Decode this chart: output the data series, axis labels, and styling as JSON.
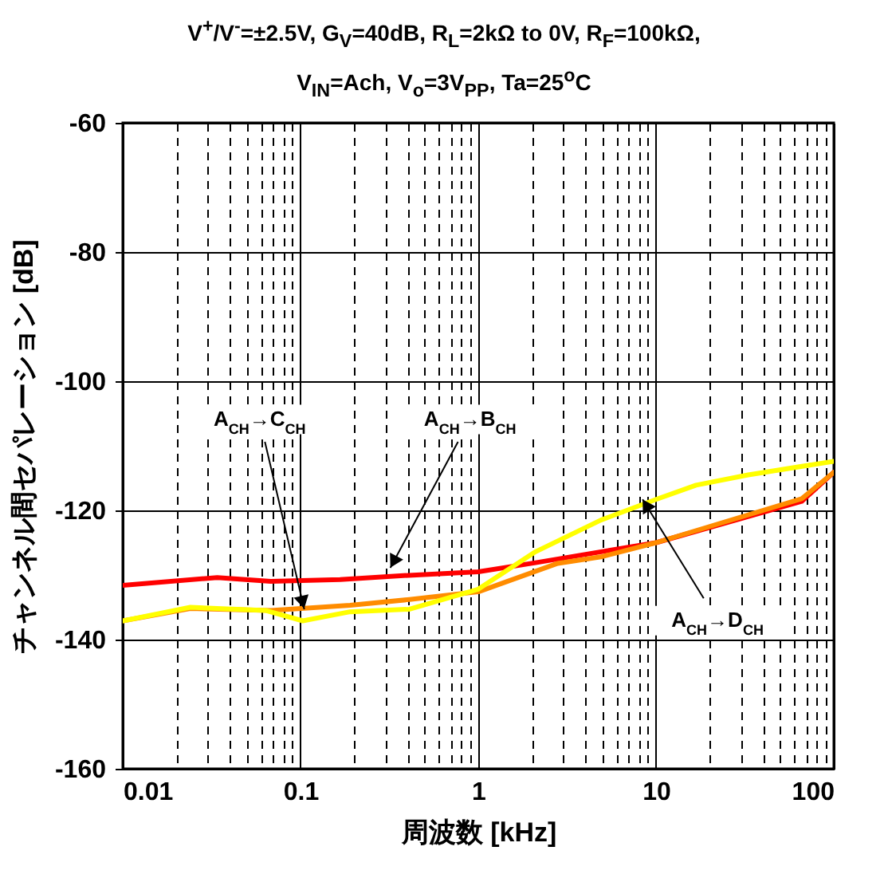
{
  "chart_data": {
    "type": "line",
    "title": "V$^{+}$/V$^{-}$=±2.5V, G$_{V}$=40dB, R$_{L}$=2kΩ to 0V, R$_{F}$=100kΩ, V$_{IN}$=Ach, V$_{o}$=3V$_{PP}$, Ta=25$^{o}$C",
    "xlabel": "周波数 [kHz]",
    "ylabel": "チャンネル間セパレーション [dB]",
    "log": "x",
    "grid": true,
    "legend": false,
    "line_style": "solid",
    "marker": "none",
    "xlim": [
      0.01,
      100
    ],
    "ylim": [
      -160,
      -60
    ],
    "xticks": [
      0.01,
      {
        "value": 0.02,
        "label": null
      },
      {
        "value": 0.03,
        "label": null
      },
      {
        "value": 0.04,
        "label": null
      },
      {
        "value": 0.05,
        "label": null
      },
      {
        "value": 0.06,
        "label": null
      },
      {
        "value": 0.07,
        "label": null
      },
      {
        "value": 0.08,
        "label": null
      },
      {
        "value": 0.09,
        "label": null
      },
      0.1,
      {
        "value": 0.2,
        "label": null
      },
      {
        "value": 0.3,
        "label": null
      },
      {
        "value": 0.4,
        "label": null
      },
      {
        "value": 0.5,
        "label": null
      },
      {
        "value": 0.6,
        "label": null
      },
      {
        "value": 0.7,
        "label": null
      },
      {
        "value": 0.8,
        "label": null
      },
      {
        "value": 0.9,
        "label": null
      },
      1,
      {
        "value": 2,
        "label": null
      },
      {
        "value": 3,
        "label": null
      },
      {
        "value": 4,
        "label": null
      },
      {
        "value": 5,
        "label": null
      },
      {
        "value": 6,
        "label": null
      },
      {
        "value": 7,
        "label": null
      },
      {
        "value": 8,
        "label": null
      },
      {
        "value": 9,
        "label": null
      },
      10,
      {
        "value": 20,
        "label": null
      },
      {
        "value": 30,
        "label": null
      },
      {
        "value": 40,
        "label": null
      },
      {
        "value": 50,
        "label": null
      },
      {
        "value": 60,
        "label": null
      },
      {
        "value": 70,
        "label": null
      },
      {
        "value": 80,
        "label": null
      },
      {
        "value": 90,
        "label": null
      },
      100
    ],
    "yticks": [
      -160,
      -140,
      -120,
      -100,
      -80,
      -60
    ],
    "series": [
      {
        "color": "#ff0000",
        "x": [
          0.01,
          0.034,
          0.068,
          0.167,
          0.38,
          1,
          2.1,
          10,
          66,
          100
        ],
        "values": [
          -131.6,
          -130.4,
          -131,
          -130.7,
          -130.1,
          -129.5,
          -128.1,
          -125,
          -118.6,
          -114.1
        ]
      },
      {
        "color": "#ff8c00",
        "x": [
          0.01,
          0.024,
          0.068,
          0.19,
          0.41,
          1,
          2.8,
          4.9,
          10,
          66,
          100
        ],
        "values": [
          -137.1,
          -135.2,
          -135.5,
          -134.7,
          -133.8,
          -132.6,
          -128.2,
          -127.2,
          -125,
          -118.2,
          -114.1
        ]
      },
      {
        "color": "#ffff00",
        "x": [
          0.01,
          0.024,
          0.064,
          0.103,
          0.19,
          0.41,
          1,
          2.1,
          4.9,
          10,
          16.8,
          33,
          100
        ],
        "values": [
          -137.1,
          -135,
          -135.5,
          -137.1,
          -135.7,
          -135.3,
          -132.2,
          -126.4,
          -121.5,
          -118.3,
          -116.1,
          -114.5,
          -112.4
        ]
      }
    ],
    "annotations": [
      {
        "text": "A$_{CH}$→C$_{CH}$",
        "x": 0.105,
        "y": -135.3
      },
      {
        "text": "A$_{CH}$→B$_{CH}$",
        "x": 0.32,
        "y": -128.9
      },
      {
        "text": "A$_{CH}$→D$_{CH}$",
        "x": 8.4,
        "y": -118.3
      }
    ]
  }
}
